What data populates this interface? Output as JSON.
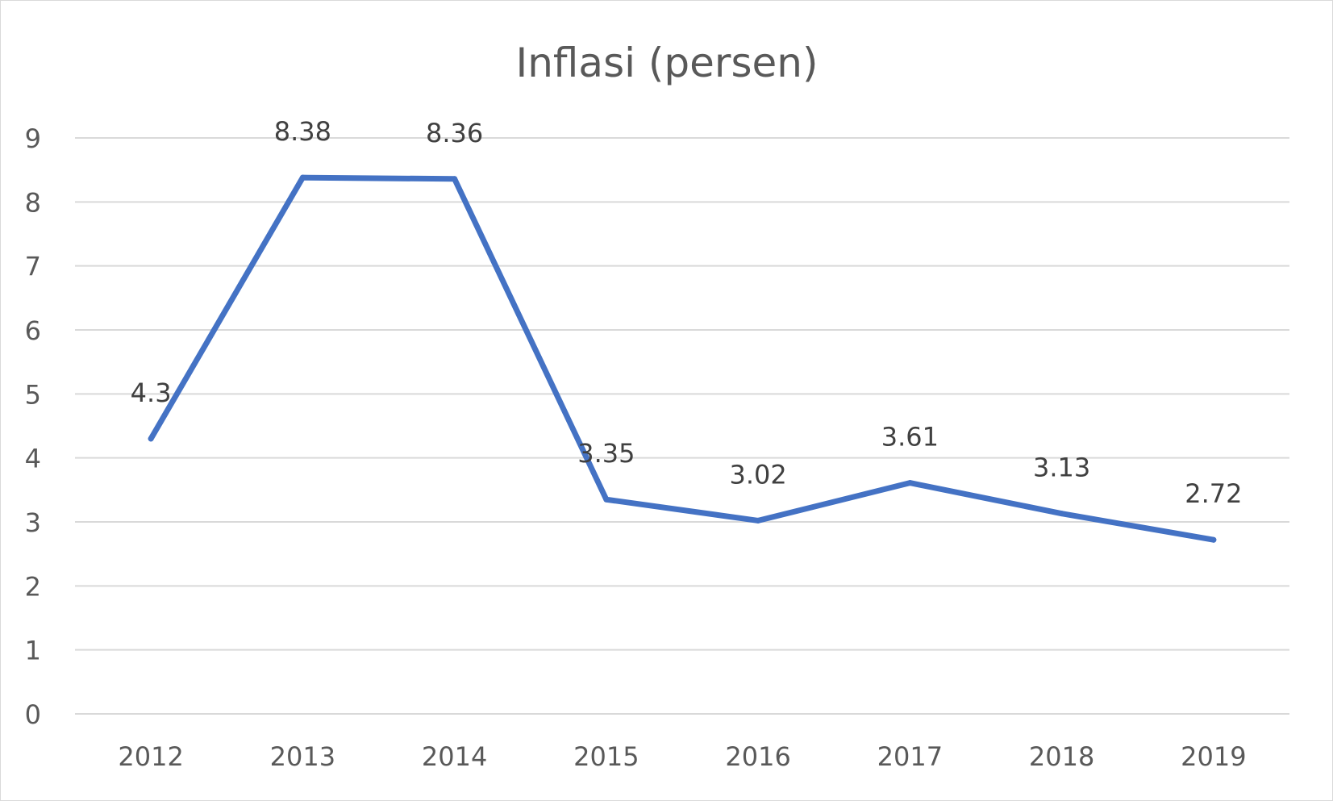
{
  "chart_data": {
    "type": "line",
    "title": "Inflasi (persen)",
    "categories": [
      "2012",
      "2013",
      "2014",
      "2015",
      "2016",
      "2017",
      "2018",
      "2019"
    ],
    "series": [
      {
        "values": [
          4.3,
          8.38,
          8.36,
          3.35,
          3.02,
          3.61,
          3.13,
          2.72
        ],
        "labels": [
          "4.3",
          "8.38",
          "8.36",
          "3.35",
          "3.02",
          "3.61",
          "3.13",
          "2.72"
        ],
        "color": "#4472c4"
      }
    ],
    "xlabel": "",
    "ylabel": "",
    "ylim": [
      0,
      9
    ],
    "yticks": [
      "0",
      "1",
      "2",
      "3",
      "4",
      "5",
      "6",
      "7",
      "8",
      "9"
    ],
    "grid": true,
    "legend": "none"
  }
}
